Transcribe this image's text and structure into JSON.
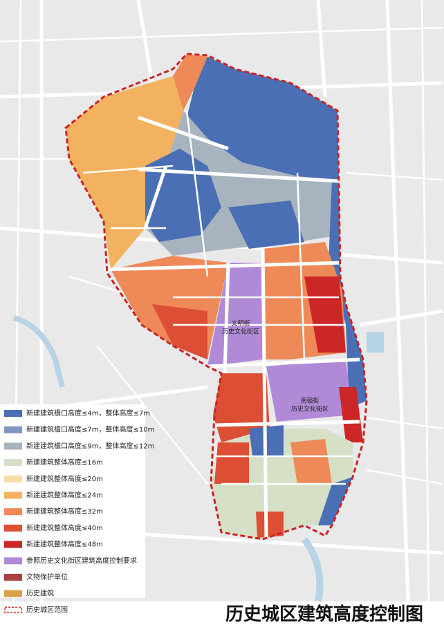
{
  "title": "历史城区建筑高度控制图",
  "map_labels": [
    {
      "lines": [
        "文明街",
        "历史文化街区"
      ]
    },
    {
      "lines": [
        "南强街",
        "历史文化街区"
      ]
    }
  ],
  "legend": {
    "items": [
      {
        "label": "新建建筑檐口高度≤4m，整体高度≤7m",
        "color": "#4a6fb5"
      },
      {
        "label": "新建建筑檐口高度≤7m，整体高度≤10m",
        "color": "#7e96c0"
      },
      {
        "label": "新建建筑檐口高度≤9m，整体高度≤12m",
        "color": "#a7b3bf"
      },
      {
        "label": "新建建筑整体高度≤16m",
        "color": "#d6e0c6"
      },
      {
        "label": "新建建筑整体高度≤20m",
        "color": "#f6dfa6"
      },
      {
        "label": "新建建筑整体高度≤24m",
        "color": "#f2b25f"
      },
      {
        "label": "新建建筑整体高度≤32m",
        "color": "#ee8a58"
      },
      {
        "label": "新建建筑整体高度≤40m",
        "color": "#dd4f35"
      },
      {
        "label": "新建建筑整体高度≤48m",
        "color": "#cc2626"
      },
      {
        "label": "参照历史文化街区建筑高度控制要求",
        "color": "#b08ad6"
      },
      {
        "label": "文物保护单位",
        "color": "#a9413e"
      },
      {
        "label": "历史建筑",
        "color": "#d9a24a"
      },
      {
        "label": "历史城区范围",
        "color": "#cc2222",
        "swatch": "dashed"
      }
    ]
  }
}
